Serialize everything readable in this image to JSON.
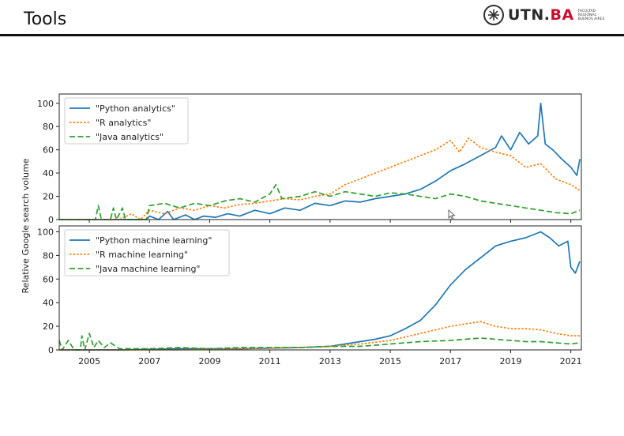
{
  "slide": {
    "title": "Tools",
    "logo": {
      "brand_text": "UTN.",
      "brand_accent": "BA",
      "subtext_lines": [
        "FACULTAD",
        "REGIONAL",
        "BUENOS AIRES"
      ],
      "accent_color": "#c8102e"
    }
  },
  "chart_data": [
    {
      "type": "line",
      "title": "",
      "xlabel": "",
      "ylabel": "Relative Google search volume",
      "xlim": [
        2004.0,
        2021.35
      ],
      "ylim": [
        0,
        108
      ],
      "yticks": [
        0,
        20,
        40,
        60,
        80,
        100
      ],
      "xticks": [
        2005,
        2007,
        2009,
        2011,
        2013,
        2015,
        2017,
        2019,
        2021
      ],
      "legend": "top-left",
      "grid": false,
      "series": [
        {
          "name": "\"Python analytics\"",
          "color": "#1f77b4",
          "style": "solid",
          "points": [
            [
              2004.0,
              0
            ],
            [
              2005.0,
              0
            ],
            [
              2006.0,
              0
            ],
            [
              2006.9,
              0
            ],
            [
              2007.0,
              3
            ],
            [
              2007.3,
              0
            ],
            [
              2007.6,
              7
            ],
            [
              2007.8,
              0
            ],
            [
              2008.2,
              4
            ],
            [
              2008.5,
              0
            ],
            [
              2008.8,
              3
            ],
            [
              2009.2,
              2
            ],
            [
              2009.6,
              5
            ],
            [
              2010.0,
              3
            ],
            [
              2010.5,
              8
            ],
            [
              2011.0,
              5
            ],
            [
              2011.5,
              10
            ],
            [
              2012.0,
              8
            ],
            [
              2012.5,
              14
            ],
            [
              2013.0,
              12
            ],
            [
              2013.5,
              16
            ],
            [
              2014.0,
              15
            ],
            [
              2014.5,
              18
            ],
            [
              2015.0,
              20
            ],
            [
              2015.5,
              22
            ],
            [
              2016.0,
              26
            ],
            [
              2016.5,
              33
            ],
            [
              2017.0,
              42
            ],
            [
              2017.5,
              48
            ],
            [
              2018.0,
              55
            ],
            [
              2018.5,
              62
            ],
            [
              2018.7,
              72
            ],
            [
              2019.0,
              60
            ],
            [
              2019.3,
              75
            ],
            [
              2019.6,
              65
            ],
            [
              2019.9,
              72
            ],
            [
              2020.0,
              100
            ],
            [
              2020.15,
              65
            ],
            [
              2020.4,
              60
            ],
            [
              2020.7,
              52
            ],
            [
              2021.0,
              45
            ],
            [
              2021.2,
              38
            ],
            [
              2021.3,
              52
            ]
          ]
        },
        {
          "name": "\"R analytics\"",
          "color": "#ff7f0e",
          "style": "dotted",
          "points": [
            [
              2004.0,
              0
            ],
            [
              2006.0,
              0
            ],
            [
              2006.4,
              5
            ],
            [
              2006.7,
              0
            ],
            [
              2007.0,
              8
            ],
            [
              2007.5,
              5
            ],
            [
              2008.0,
              10
            ],
            [
              2008.5,
              8
            ],
            [
              2009.0,
              12
            ],
            [
              2009.5,
              10
            ],
            [
              2010.0,
              13
            ],
            [
              2010.5,
              14
            ],
            [
              2011.0,
              16
            ],
            [
              2011.5,
              18
            ],
            [
              2012.0,
              17
            ],
            [
              2012.5,
              20
            ],
            [
              2013.0,
              22
            ],
            [
              2013.5,
              30
            ],
            [
              2014.0,
              35
            ],
            [
              2014.5,
              40
            ],
            [
              2015.0,
              45
            ],
            [
              2015.5,
              50
            ],
            [
              2016.0,
              55
            ],
            [
              2016.5,
              60
            ],
            [
              2017.0,
              68
            ],
            [
              2017.3,
              58
            ],
            [
              2017.6,
              70
            ],
            [
              2018.0,
              62
            ],
            [
              2018.5,
              58
            ],
            [
              2019.0,
              55
            ],
            [
              2019.5,
              45
            ],
            [
              2020.0,
              48
            ],
            [
              2020.5,
              35
            ],
            [
              2021.0,
              30
            ],
            [
              2021.3,
              25
            ]
          ]
        },
        {
          "name": "\"Java analytics\"",
          "color": "#2ca02c",
          "style": "dashed",
          "points": [
            [
              2004.0,
              0
            ],
            [
              2005.2,
              0
            ],
            [
              2005.3,
              12
            ],
            [
              2005.4,
              0
            ],
            [
              2005.7,
              0
            ],
            [
              2005.8,
              10
            ],
            [
              2005.9,
              0
            ],
            [
              2006.1,
              10
            ],
            [
              2006.2,
              0
            ],
            [
              2006.9,
              0
            ],
            [
              2007.0,
              12
            ],
            [
              2007.5,
              14
            ],
            [
              2008.0,
              10
            ],
            [
              2008.5,
              14
            ],
            [
              2009.0,
              12
            ],
            [
              2009.5,
              16
            ],
            [
              2010.0,
              18
            ],
            [
              2010.5,
              15
            ],
            [
              2011.0,
              22
            ],
            [
              2011.2,
              30
            ],
            [
              2011.4,
              18
            ],
            [
              2012.0,
              20
            ],
            [
              2012.5,
              24
            ],
            [
              2013.0,
              20
            ],
            [
              2013.5,
              24
            ],
            [
              2014.0,
              22
            ],
            [
              2014.5,
              20
            ],
            [
              2015.0,
              23
            ],
            [
              2015.5,
              22
            ],
            [
              2016.0,
              20
            ],
            [
              2016.5,
              18
            ],
            [
              2017.0,
              22
            ],
            [
              2017.5,
              20
            ],
            [
              2018.0,
              16
            ],
            [
              2018.5,
              14
            ],
            [
              2019.0,
              12
            ],
            [
              2019.5,
              10
            ],
            [
              2020.0,
              8
            ],
            [
              2020.5,
              6
            ],
            [
              2021.0,
              5
            ],
            [
              2021.3,
              8
            ]
          ]
        }
      ]
    },
    {
      "type": "line",
      "title": "",
      "xlabel": "",
      "ylabel": "",
      "xlim": [
        2004.0,
        2021.35
      ],
      "ylim": [
        0,
        105
      ],
      "yticks": [
        0,
        20,
        40,
        60,
        80,
        100
      ],
      "xticks": [
        2005,
        2007,
        2009,
        2011,
        2013,
        2015,
        2017,
        2019,
        2021
      ],
      "legend": "top-left",
      "grid": false,
      "series": [
        {
          "name": "\"Python machine learning\"",
          "color": "#1f77b4",
          "style": "solid",
          "points": [
            [
              2004.0,
              0
            ],
            [
              2006.0,
              0
            ],
            [
              2008.0,
              1
            ],
            [
              2010.0,
              1
            ],
            [
              2012.0,
              2
            ],
            [
              2013.0,
              3
            ],
            [
              2013.5,
              5
            ],
            [
              2014.0,
              7
            ],
            [
              2014.5,
              9
            ],
            [
              2015.0,
              12
            ],
            [
              2015.5,
              18
            ],
            [
              2016.0,
              25
            ],
            [
              2016.5,
              38
            ],
            [
              2017.0,
              55
            ],
            [
              2017.5,
              68
            ],
            [
              2018.0,
              78
            ],
            [
              2018.5,
              88
            ],
            [
              2019.0,
              92
            ],
            [
              2019.5,
              95
            ],
            [
              2020.0,
              100
            ],
            [
              2020.3,
              95
            ],
            [
              2020.6,
              88
            ],
            [
              2020.9,
              92
            ],
            [
              2021.0,
              70
            ],
            [
              2021.15,
              65
            ],
            [
              2021.3,
              75
            ]
          ]
        },
        {
          "name": "\"R machine learning\"",
          "color": "#ff7f0e",
          "style": "dotted",
          "points": [
            [
              2004.0,
              0
            ],
            [
              2008.0,
              0
            ],
            [
              2010.0,
              1
            ],
            [
              2012.0,
              2
            ],
            [
              2013.0,
              3
            ],
            [
              2014.0,
              5
            ],
            [
              2015.0,
              8
            ],
            [
              2016.0,
              14
            ],
            [
              2017.0,
              20
            ],
            [
              2017.5,
              22
            ],
            [
              2018.0,
              24
            ],
            [
              2018.5,
              20
            ],
            [
              2019.0,
              18
            ],
            [
              2019.5,
              18
            ],
            [
              2020.0,
              17
            ],
            [
              2020.5,
              14
            ],
            [
              2021.0,
              12
            ],
            [
              2021.3,
              12
            ]
          ]
        },
        {
          "name": "\"Java machine learning\"",
          "color": "#2ca02c",
          "style": "dashed",
          "points": [
            [
              2004.0,
              8
            ],
            [
              2004.1,
              0
            ],
            [
              2004.3,
              8
            ],
            [
              2004.5,
              0
            ],
            [
              2004.7,
              0
            ],
            [
              2004.75,
              12
            ],
            [
              2004.85,
              0
            ],
            [
              2005.0,
              14
            ],
            [
              2005.15,
              2
            ],
            [
              2005.3,
              8
            ],
            [
              2005.5,
              2
            ],
            [
              2005.7,
              6
            ],
            [
              2006.0,
              1
            ],
            [
              2007.0,
              1
            ],
            [
              2008.0,
              2
            ],
            [
              2009.0,
              1
            ],
            [
              2010.0,
              2
            ],
            [
              2011.0,
              2
            ],
            [
              2012.0,
              2
            ],
            [
              2013.0,
              3
            ],
            [
              2014.0,
              3
            ],
            [
              2015.0,
              5
            ],
            [
              2016.0,
              7
            ],
            [
              2017.0,
              8
            ],
            [
              2017.5,
              9
            ],
            [
              2018.0,
              10
            ],
            [
              2018.5,
              9
            ],
            [
              2019.0,
              8
            ],
            [
              2019.5,
              7
            ],
            [
              2020.0,
              7
            ],
            [
              2020.5,
              6
            ],
            [
              2021.0,
              5
            ],
            [
              2021.3,
              6
            ]
          ]
        }
      ]
    }
  ]
}
